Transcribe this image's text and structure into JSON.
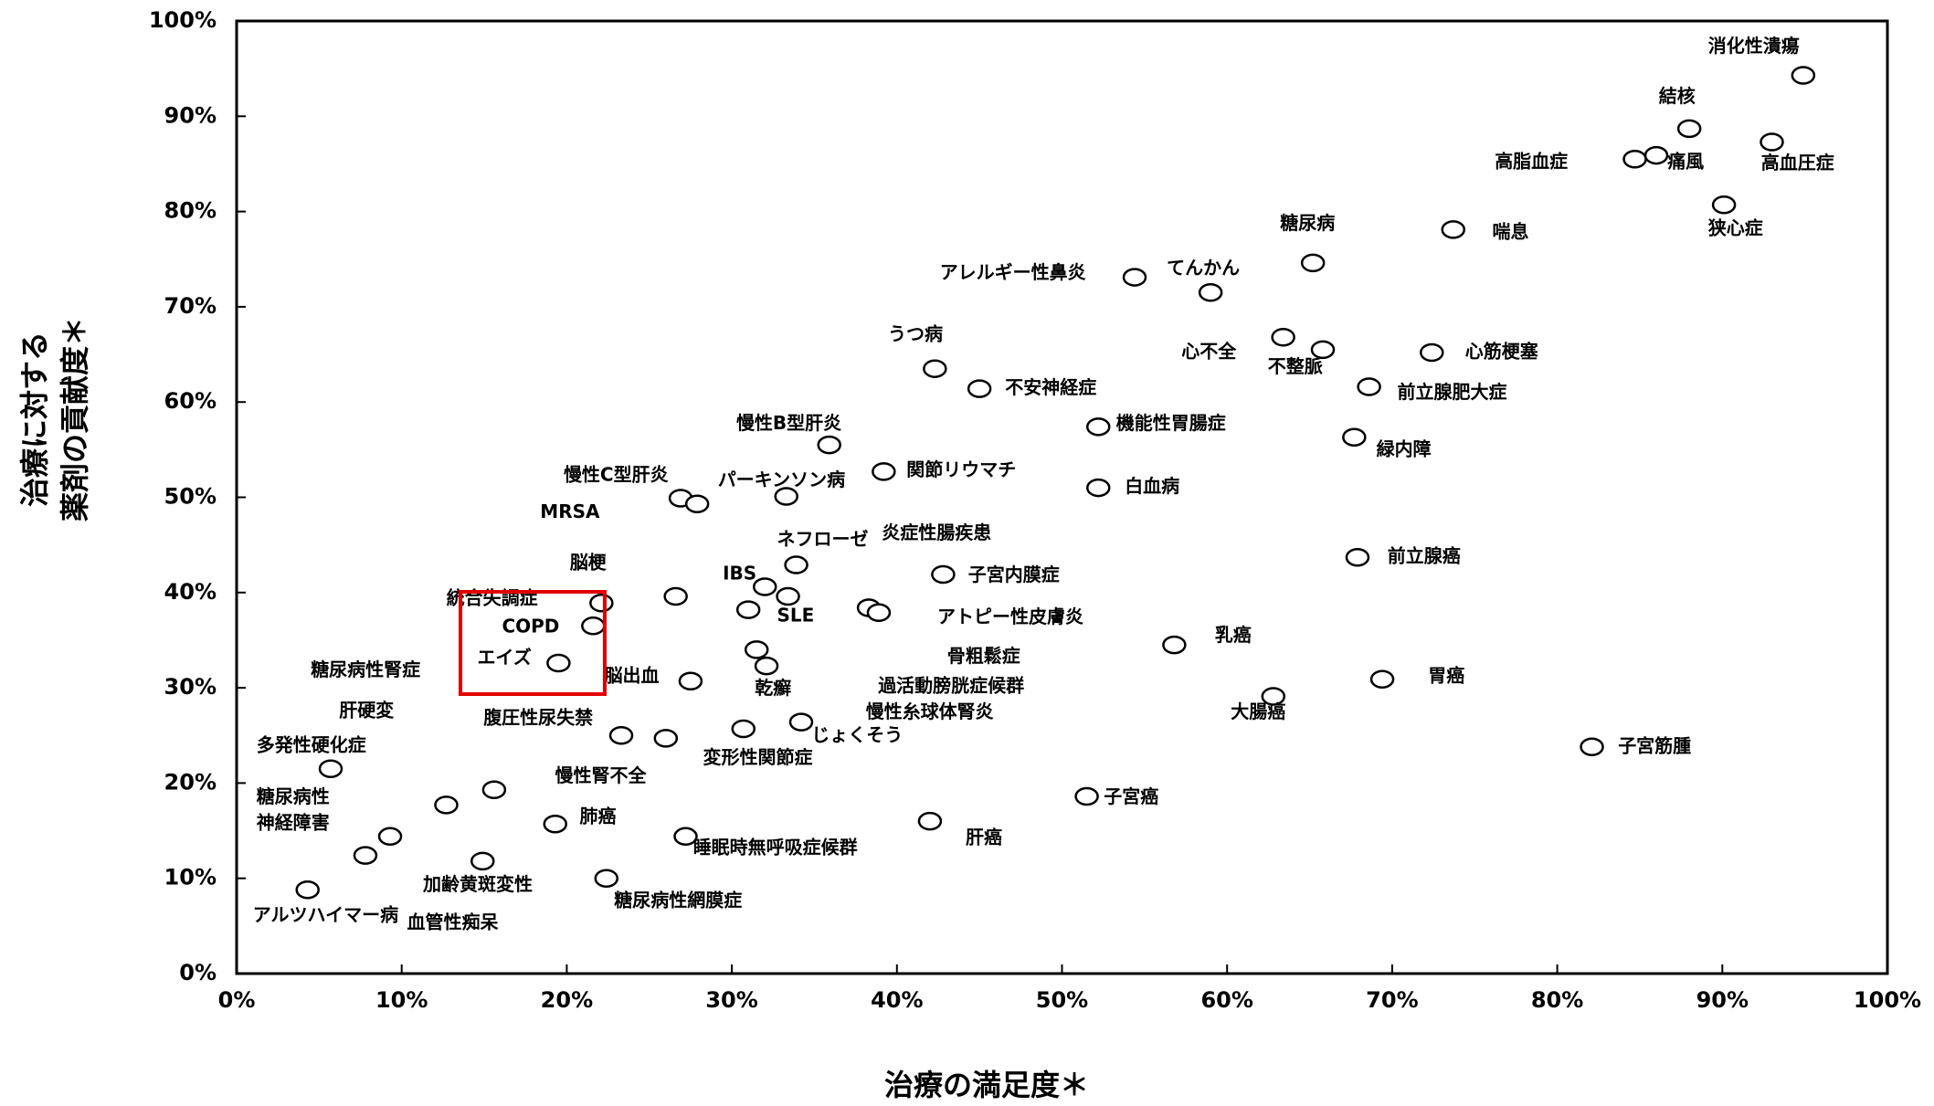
{
  "chart_data": {
    "type": "scatter",
    "xlabel": "治療の満足度＊",
    "ylabel": [
      "治療に対する",
      "薬剤の貢献度＊"
    ],
    "xlim": [
      0,
      100
    ],
    "ylim": [
      0,
      100
    ],
    "xticks": [
      {
        "value": 0,
        "label": "0%"
      },
      {
        "value": 10,
        "label": "10%"
      },
      {
        "value": 20,
        "label": "20%"
      },
      {
        "value": 30,
        "label": "30%"
      },
      {
        "value": 40,
        "label": "40%"
      },
      {
        "value": 50,
        "label": "50%"
      },
      {
        "value": 60,
        "label": "60%"
      },
      {
        "value": 70,
        "label": "70%"
      },
      {
        "value": 80,
        "label": "80%"
      },
      {
        "value": 90,
        "label": "90%"
      },
      {
        "value": 100,
        "label": "100%"
      }
    ],
    "yticks": [
      {
        "value": 0,
        "label": "0%"
      },
      {
        "value": 10,
        "label": "10%"
      },
      {
        "value": 20,
        "label": "20%"
      },
      {
        "value": 30,
        "label": "30%"
      },
      {
        "value": 40,
        "label": "40%"
      },
      {
        "value": 50,
        "label": "50%"
      },
      {
        "value": 60,
        "label": "60%"
      },
      {
        "value": 70,
        "label": "70%"
      },
      {
        "value": 80,
        "label": "80%"
      },
      {
        "value": 90,
        "label": "90%"
      },
      {
        "value": 100,
        "label": "100%"
      }
    ],
    "series": [
      {
        "color": "#000000",
        "x": [
          94.9,
          88.0,
          84.7,
          86.0,
          93.0,
          90.1,
          65.2,
          73.7,
          54.4,
          59.0,
          42.3,
          45.0,
          63.4,
          65.8,
          72.4,
          68.6,
          52.2,
          67.7,
          35.9,
          39.2,
          52.2,
          26.9,
          27.9,
          33.3,
          33.9,
          42.8,
          32.0,
          33.4,
          31.0,
          38.3,
          38.9,
          26.6,
          22.1,
          21.6,
          19.5,
          27.5,
          31.5,
          32.1,
          56.8,
          67.9,
          69.4,
          62.8,
          82.1,
          51.5,
          42.0,
          34.2,
          30.7,
          23.3,
          26.0,
          5.7,
          15.6,
          12.7,
          19.3,
          27.2,
          9.3,
          7.8,
          14.9,
          22.4,
          4.3
        ],
        "values": [
          94.3,
          88.7,
          85.5,
          85.9,
          87.3,
          80.7,
          74.6,
          78.1,
          73.1,
          71.5,
          63.5,
          61.4,
          66.8,
          65.5,
          65.2,
          61.6,
          57.4,
          56.3,
          55.5,
          52.7,
          51.0,
          49.9,
          49.3,
          50.1,
          42.9,
          41.9,
          40.6,
          39.6,
          38.2,
          38.4,
          37.9,
          39.6,
          38.9,
          36.5,
          32.6,
          30.7,
          34.0,
          32.3,
          34.5,
          43.7,
          30.9,
          29.1,
          23.8,
          18.6,
          16.0,
          26.4,
          25.7,
          25.0,
          24.7,
          21.5,
          19.3,
          17.7,
          15.7,
          14.4,
          14.4,
          12.4,
          11.8,
          10.0,
          8.8
        ]
      }
    ],
    "annotations": [
      "消化性潰瘍",
      "結核",
      "高脂血症",
      "痛風",
      "高血圧症",
      "狭心症",
      "糖尿病",
      "喘息",
      "アレルギー性鼻炎",
      "てんかん",
      "うつ病",
      "不安神経症",
      "心不全",
      "不整脈",
      "心筋梗塞",
      "前立腺肥大症",
      "機能性胃腸症",
      "緑内障",
      "慢性B型肝炎",
      "関節リウマチ",
      "白血病",
      "慢性C型肝炎",
      "パーキンソン病",
      "MRSA",
      "ネフローゼ",
      "炎症性腸疾患",
      "脳梗",
      "IBS",
      "子宮内膜症",
      "統合失調症",
      "SLE",
      "アトピー性皮膚炎",
      "COPD",
      "乳癌",
      "骨粗鬆症",
      "エイズ",
      "糖尿病性腎症",
      "脳出血",
      "胃癌",
      "過活動膀胱症候群",
      "乾癬",
      "肝硬変",
      "慢性糸球体腎炎",
      "大腸癌",
      "腹圧性尿失禁",
      "じょくそう",
      "多発性硬化症",
      "子宮筋腫",
      "変形性関節症",
      "慢性腎不全",
      "子宮癌",
      "糖尿病性",
      "神経障害",
      "肺癌",
      "肝癌",
      "睡眠時無呼吸症候群",
      "加齢黄斑変性",
      "糖尿病性網膜症",
      "アルツハイマー病",
      "血管性痴呆",
      "前立腺癌"
    ]
  }
}
